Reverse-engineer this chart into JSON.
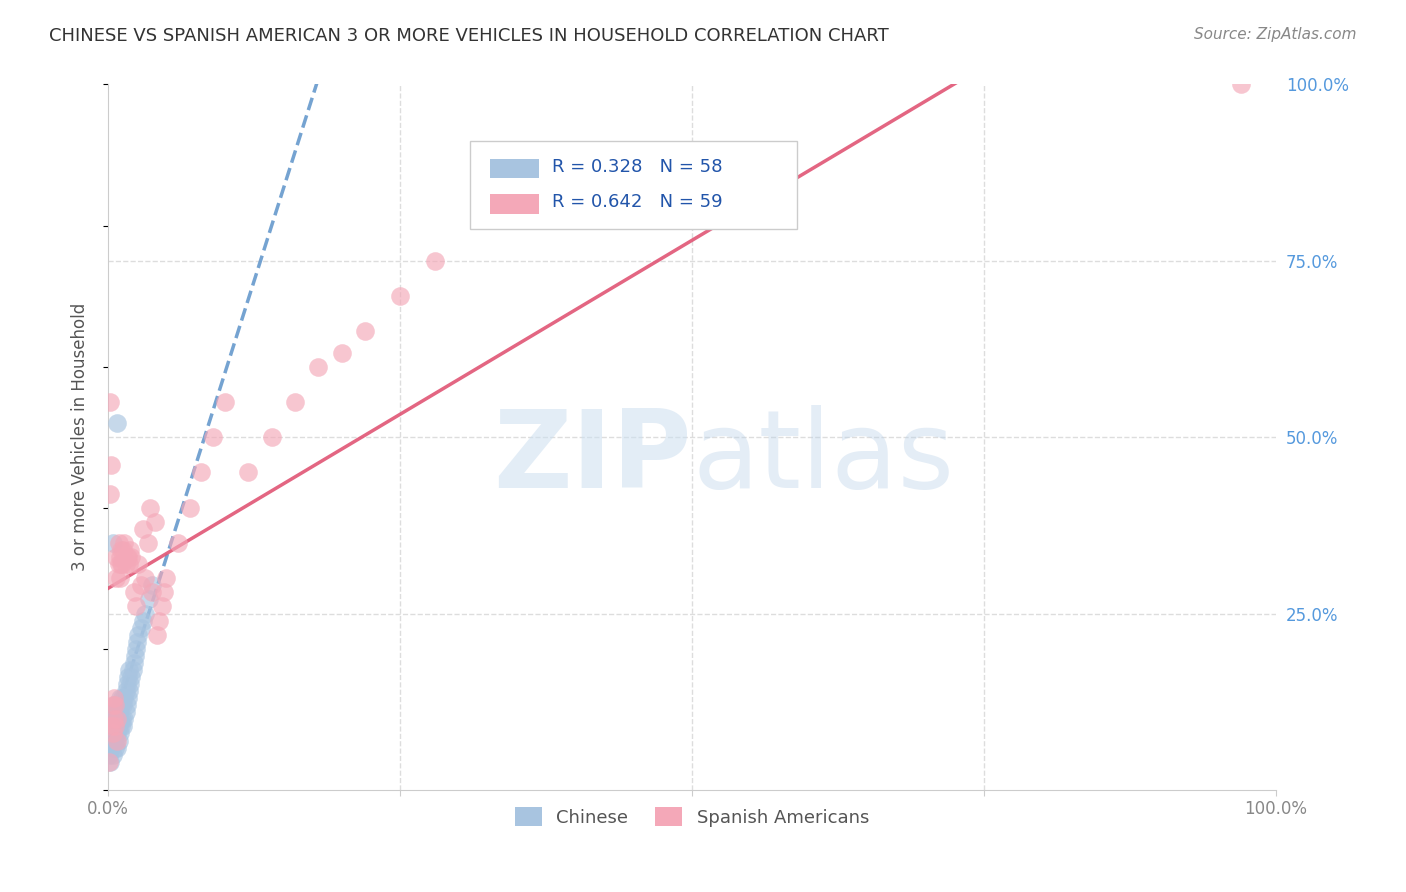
{
  "title": "CHINESE VS SPANISH AMERICAN 3 OR MORE VEHICLES IN HOUSEHOLD CORRELATION CHART",
  "source": "Source: ZipAtlas.com",
  "ylabel": "3 or more Vehicles in Household",
  "xlim": [
    0,
    1.0
  ],
  "ylim": [
    0,
    1.0
  ],
  "chinese_color": "#a8c4e0",
  "spanish_color": "#f4a8b8",
  "chinese_line_color": "#6699cc",
  "spanish_line_color": "#e05575",
  "background_color": "#ffffff",
  "grid_color": "#dddddd",
  "title_color": "#333333",
  "axis_label_color": "#555555",
  "tick_color_right": "#5599dd",
  "legend_r1": "R = 0.328",
  "legend_n1": "N = 58",
  "legend_r2": "R = 0.642",
  "legend_n2": "N = 59",
  "chinese_x": [
    0.001,
    0.002,
    0.002,
    0.003,
    0.003,
    0.003,
    0.004,
    0.004,
    0.004,
    0.005,
    0.005,
    0.005,
    0.006,
    0.006,
    0.006,
    0.007,
    0.007,
    0.007,
    0.008,
    0.008,
    0.008,
    0.009,
    0.009,
    0.009,
    0.01,
    0.01,
    0.01,
    0.011,
    0.011,
    0.012,
    0.012,
    0.013,
    0.013,
    0.014,
    0.014,
    0.015,
    0.015,
    0.016,
    0.016,
    0.017,
    0.017,
    0.018,
    0.018,
    0.019,
    0.02,
    0.021,
    0.022,
    0.023,
    0.024,
    0.025,
    0.026,
    0.028,
    0.03,
    0.032,
    0.035,
    0.038,
    0.004,
    0.008
  ],
  "chinese_y": [
    0.05,
    0.08,
    0.04,
    0.07,
    0.1,
    0.06,
    0.08,
    0.11,
    0.05,
    0.09,
    0.07,
    0.12,
    0.08,
    0.1,
    0.06,
    0.09,
    0.07,
    0.11,
    0.08,
    0.1,
    0.06,
    0.09,
    0.07,
    0.11,
    0.08,
    0.1,
    0.13,
    0.09,
    0.12,
    0.1,
    0.13,
    0.09,
    0.12,
    0.1,
    0.13,
    0.11,
    0.14,
    0.12,
    0.15,
    0.13,
    0.16,
    0.14,
    0.17,
    0.15,
    0.16,
    0.17,
    0.18,
    0.19,
    0.2,
    0.21,
    0.22,
    0.23,
    0.24,
    0.25,
    0.27,
    0.29,
    0.35,
    0.52
  ],
  "spanish_x": [
    0.001,
    0.002,
    0.002,
    0.003,
    0.003,
    0.004,
    0.004,
    0.005,
    0.005,
    0.006,
    0.006,
    0.007,
    0.007,
    0.008,
    0.008,
    0.009,
    0.009,
    0.01,
    0.01,
    0.011,
    0.011,
    0.012,
    0.013,
    0.014,
    0.015,
    0.016,
    0.017,
    0.018,
    0.019,
    0.02,
    0.022,
    0.024,
    0.026,
    0.028,
    0.03,
    0.032,
    0.034,
    0.036,
    0.038,
    0.04,
    0.042,
    0.044,
    0.046,
    0.048,
    0.05,
    0.06,
    0.07,
    0.08,
    0.09,
    0.1,
    0.12,
    0.14,
    0.16,
    0.18,
    0.2,
    0.22,
    0.25,
    0.28,
    0.97
  ],
  "spanish_y": [
    0.04,
    0.42,
    0.55,
    0.09,
    0.46,
    0.12,
    0.08,
    0.1,
    0.13,
    0.09,
    0.12,
    0.3,
    0.33,
    0.07,
    0.1,
    0.35,
    0.32,
    0.3,
    0.33,
    0.32,
    0.34,
    0.32,
    0.34,
    0.35,
    0.32,
    0.33,
    0.33,
    0.32,
    0.34,
    0.33,
    0.28,
    0.26,
    0.32,
    0.29,
    0.37,
    0.3,
    0.35,
    0.4,
    0.28,
    0.38,
    0.22,
    0.24,
    0.26,
    0.28,
    0.3,
    0.35,
    0.4,
    0.45,
    0.5,
    0.55,
    0.45,
    0.5,
    0.55,
    0.6,
    0.62,
    0.65,
    0.7,
    0.75,
    1.0
  ]
}
